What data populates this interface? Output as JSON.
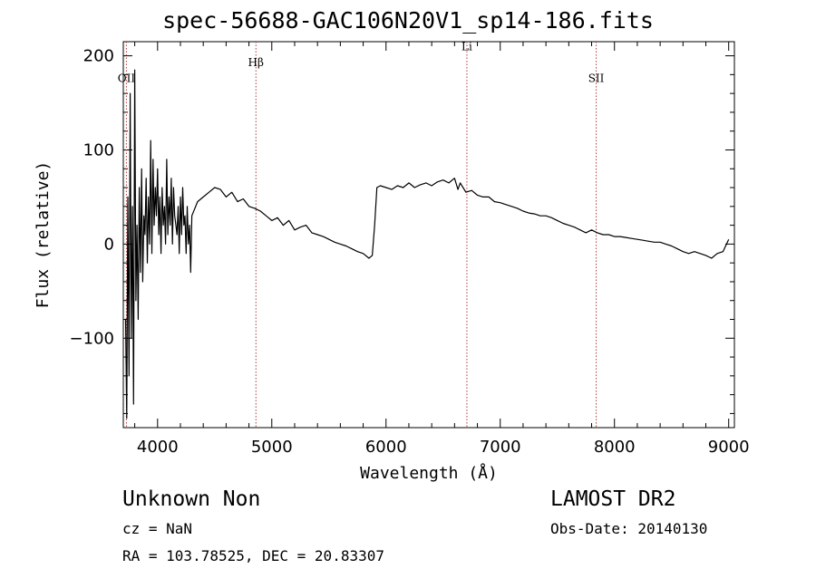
{
  "title": "spec-56688-GAC106N20V1_sp14-186.fits",
  "footer": {
    "object": "Unknown   Non",
    "cz": "cz = NaN",
    "radec": "RA = 103.78525, DEC =  20.83307",
    "survey": "LAMOST DR2",
    "obs_date": "Obs-Date: 20140130"
  },
  "chart_data": {
    "type": "line",
    "title": "spec-56688-GAC106N20V1_sp14-186.fits",
    "xlabel": "Wavelength (Å)",
    "ylabel": "Flux (relative)",
    "xlim": [
      3700,
      9050
    ],
    "ylim": [
      -195,
      215
    ],
    "xticks": [
      4000,
      5000,
      6000,
      7000,
      8000,
      9000
    ],
    "xtick_labels": [
      "4000",
      "5000",
      "6000",
      "7000",
      "8000",
      "9000"
    ],
    "yticks": [
      -100,
      0,
      100,
      200
    ],
    "ytick_labels": [
      "−100",
      "0",
      "100",
      "200"
    ],
    "grid": false,
    "line_color": "#000000",
    "marker_color": "#b03a3a",
    "lines": [
      {
        "label": "OII",
        "x": 3727,
        "label_y": 172
      },
      {
        "label": "Hβ",
        "x": 4861,
        "label_y": 189
      },
      {
        "label": "Li",
        "x": 6708,
        "label_y": 206
      },
      {
        "label": "SII",
        "x": 7840,
        "label_y": 172
      }
    ],
    "x": [
      3720,
      3730,
      3740,
      3750,
      3760,
      3770,
      3780,
      3790,
      3800,
      3810,
      3820,
      3830,
      3840,
      3850,
      3860,
      3870,
      3880,
      3890,
      3900,
      3910,
      3920,
      3930,
      3940,
      3950,
      3960,
      3970,
      3980,
      3990,
      4000,
      4010,
      4020,
      4030,
      4040,
      4050,
      4060,
      4070,
      4080,
      4090,
      4100,
      4110,
      4120,
      4130,
      4140,
      4150,
      4160,
      4170,
      4180,
      4190,
      4200,
      4210,
      4220,
      4230,
      4240,
      4250,
      4260,
      4270,
      4280,
      4290,
      4300,
      4350,
      4400,
      4450,
      4500,
      4550,
      4600,
      4650,
      4700,
      4750,
      4800,
      4850,
      4900,
      4950,
      5000,
      5050,
      5100,
      5150,
      5200,
      5250,
      5300,
      5350,
      5400,
      5450,
      5500,
      5550,
      5600,
      5650,
      5700,
      5750,
      5800,
      5850,
      5880,
      5900,
      5920,
      5950,
      6000,
      6050,
      6100,
      6150,
      6200,
      6250,
      6300,
      6350,
      6400,
      6450,
      6500,
      6550,
      6600,
      6630,
      6650,
      6700,
      6750,
      6800,
      6850,
      6900,
      6950,
      7000,
      7050,
      7100,
      7150,
      7200,
      7250,
      7300,
      7350,
      7400,
      7450,
      7500,
      7550,
      7600,
      7650,
      7700,
      7750,
      7800,
      7850,
      7900,
      7950,
      8000,
      8050,
      8100,
      8150,
      8200,
      8250,
      8300,
      8350,
      8400,
      8450,
      8500,
      8550,
      8600,
      8650,
      8700,
      8750,
      8800,
      8850,
      8900,
      8950,
      9000
    ],
    "y": [
      -80,
      -185,
      50,
      -140,
      160,
      -100,
      40,
      -170,
      185,
      -60,
      20,
      -80,
      60,
      -30,
      80,
      -40,
      30,
      10,
      70,
      -20,
      50,
      0,
      110,
      -10,
      90,
      20,
      60,
      30,
      80,
      10,
      50,
      -10,
      60,
      20,
      40,
      0,
      90,
      10,
      50,
      20,
      70,
      0,
      60,
      30,
      20,
      10,
      40,
      -10,
      50,
      10,
      60,
      20,
      30,
      -10,
      40,
      0,
      20,
      -30,
      30,
      45,
      50,
      55,
      60,
      58,
      50,
      55,
      45,
      48,
      40,
      38,
      35,
      30,
      25,
      28,
      20,
      25,
      15,
      18,
      20,
      12,
      10,
      8,
      5,
      2,
      0,
      -2,
      -5,
      -8,
      -10,
      -15,
      -12,
      20,
      60,
      62,
      60,
      58,
      62,
      60,
      65,
      60,
      63,
      65,
      62,
      66,
      68,
      65,
      70,
      58,
      65,
      55,
      57,
      52,
      50,
      50,
      45,
      44,
      42,
      40,
      38,
      35,
      33,
      32,
      30,
      30,
      28,
      25,
      22,
      20,
      18,
      15,
      12,
      15,
      12,
      10,
      10,
      8,
      8,
      7,
      6,
      5,
      4,
      3,
      2,
      2,
      0,
      -2,
      -5,
      -8,
      -10,
      -8,
      -10,
      -12,
      -15,
      -10,
      -8,
      5
    ]
  }
}
